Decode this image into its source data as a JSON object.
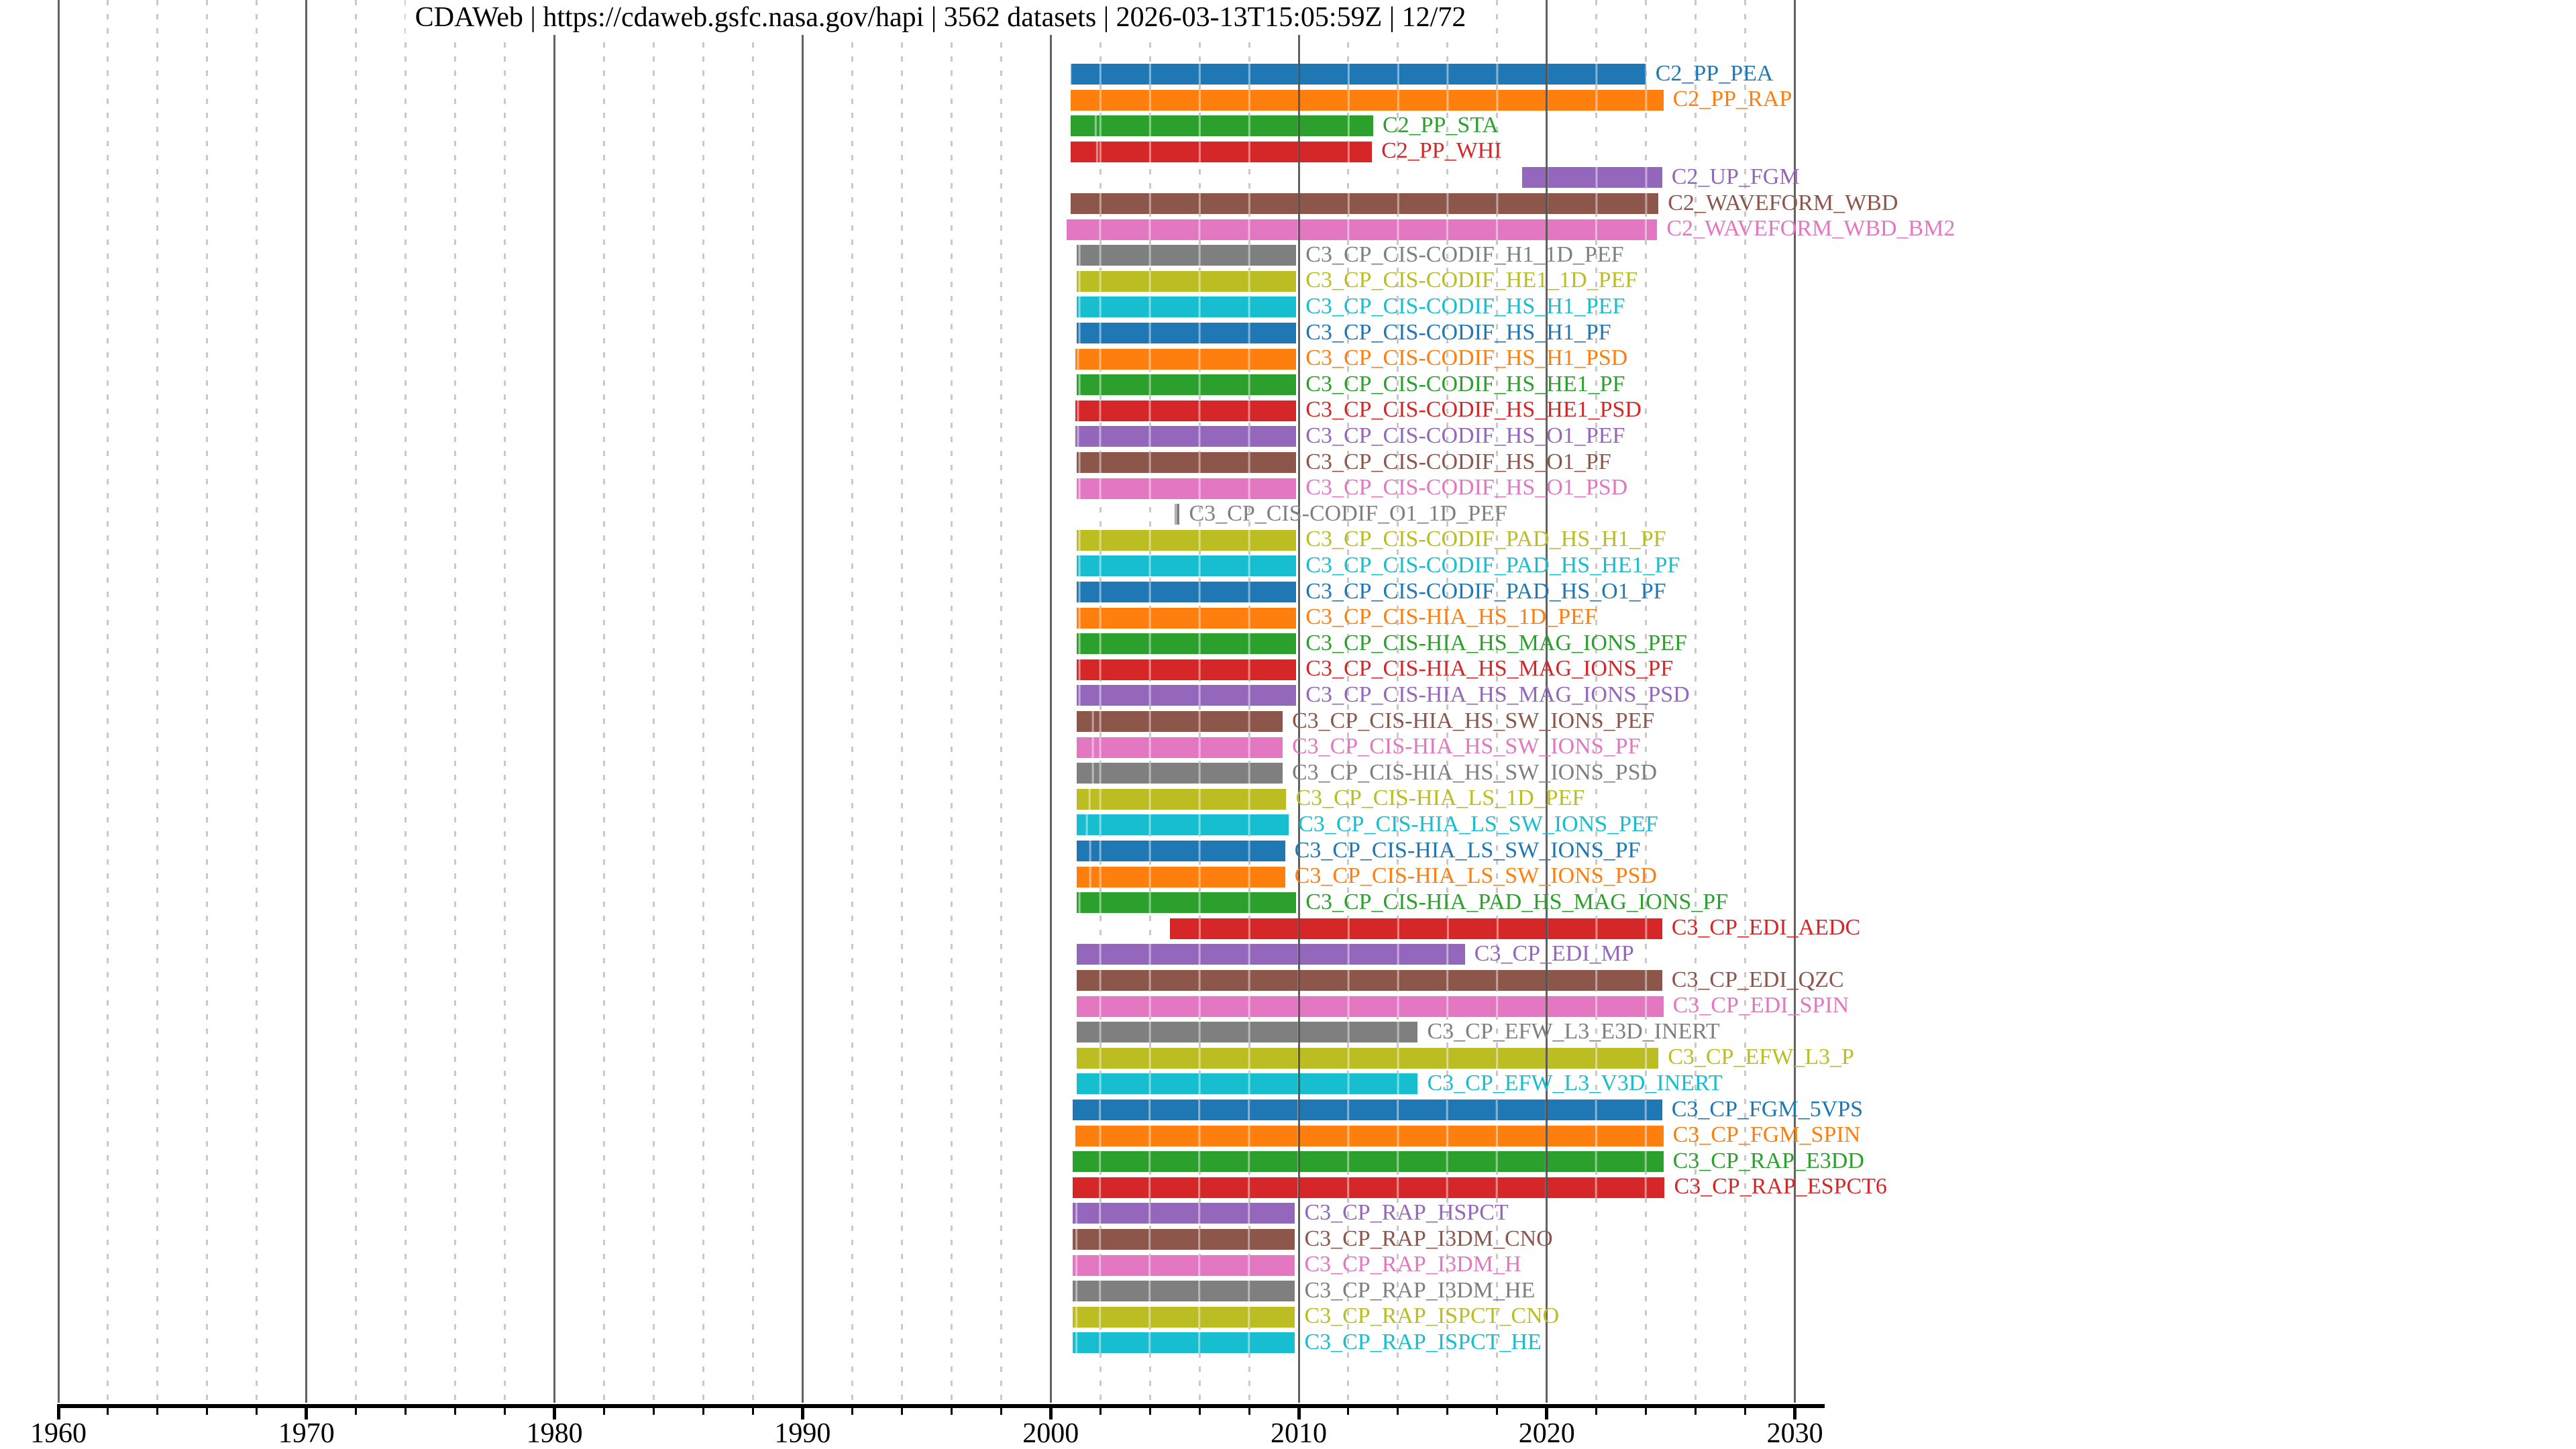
{
  "chart_data": {
    "type": "bar",
    "subtype": "horizontal-gantt-availability-timeline",
    "title": "CDAWeb | https://cdaweb.gsfc.nasa.gov/hapi | 3562 datasets | 2026-03-13T15:05:59Z | 12/72",
    "x_axis": {
      "label": "",
      "tick_years": [
        1960,
        1970,
        1980,
        1990,
        2000,
        2010,
        2020,
        2030
      ],
      "tick_labels": [
        "1960",
        "1970",
        "1980",
        "1990",
        "2000",
        "2010",
        "2020",
        "2030"
      ],
      "minor_tick_step_years": 2,
      "range_years": [
        1960.0,
        2031.2
      ],
      "grid": "major solid gray at decades, minor dotted light-gray every 2 years"
    },
    "legend": "none",
    "palette_tab10": [
      "#1f77b4",
      "#ff7f0e",
      "#2ca02c",
      "#d62728",
      "#9467bd",
      "#8c564b",
      "#e377c2",
      "#7f7f7f",
      "#bcbd22",
      "#17becf"
    ],
    "datasets": [
      {
        "id": "C2_PP_PEA",
        "start": 2000.8,
        "end": 2024.0,
        "color": "#1f77b4"
      },
      {
        "id": "C2_PP_RAP",
        "start": 2000.8,
        "end": 2024.7,
        "color": "#ff7f0e"
      },
      {
        "id": "C2_PP_STA",
        "start": 2000.8,
        "end": 2013.0,
        "color": "#2ca02c"
      },
      {
        "id": "C2_PP_WHI",
        "start": 2000.8,
        "end": 2012.95,
        "color": "#d62728"
      },
      {
        "id": "C2_UP_FGM",
        "start": 2019.0,
        "end": 2024.65,
        "color": "#9467bd"
      },
      {
        "id": "C2_WAVEFORM_WBD",
        "start": 2000.8,
        "end": 2024.5,
        "color": "#8c564b"
      },
      {
        "id": "C2_WAVEFORM_WBD_BM2",
        "start": 2000.65,
        "end": 2024.45,
        "color": "#e377c2"
      },
      {
        "id": "C3_CP_CIS-CODIF_H1_1D_PEF",
        "start": 2001.05,
        "end": 2009.9,
        "color": "#7f7f7f"
      },
      {
        "id": "C3_CP_CIS-CODIF_HE1_1D_PEF",
        "start": 2001.05,
        "end": 2009.9,
        "color": "#bcbd22"
      },
      {
        "id": "C3_CP_CIS-CODIF_HS_H1_PEF",
        "start": 2001.05,
        "end": 2009.9,
        "color": "#17becf"
      },
      {
        "id": "C3_CP_CIS-CODIF_HS_H1_PF",
        "start": 2001.05,
        "end": 2009.9,
        "color": "#1f77b4"
      },
      {
        "id": "C3_CP_CIS-CODIF_HS_H1_PSD",
        "start": 2001.0,
        "end": 2009.9,
        "color": "#ff7f0e"
      },
      {
        "id": "C3_CP_CIS-CODIF_HS_HE1_PF",
        "start": 2001.05,
        "end": 2009.9,
        "color": "#2ca02c"
      },
      {
        "id": "C3_CP_CIS-CODIF_HS_HE1_PSD",
        "start": 2001.0,
        "end": 2009.9,
        "color": "#d62728"
      },
      {
        "id": "C3_CP_CIS-CODIF_HS_O1_PEF",
        "start": 2001.0,
        "end": 2009.9,
        "color": "#9467bd"
      },
      {
        "id": "C3_CP_CIS-CODIF_HS_O1_PF",
        "start": 2001.05,
        "end": 2009.9,
        "color": "#8c564b"
      },
      {
        "id": "C3_CP_CIS-CODIF_HS_O1_PSD",
        "start": 2001.05,
        "end": 2009.9,
        "color": "#e377c2"
      },
      {
        "id": "C3_CP_CIS-CODIF_O1_1D_PEF",
        "start": 2005.0,
        "end": 2005.2,
        "color": "#7f7f7f"
      },
      {
        "id": "C3_CP_CIS-CODIF_PAD_HS_H1_PF",
        "start": 2001.05,
        "end": 2009.9,
        "color": "#bcbd22"
      },
      {
        "id": "C3_CP_CIS-CODIF_PAD_HS_HE1_PF",
        "start": 2001.05,
        "end": 2009.9,
        "color": "#17becf"
      },
      {
        "id": "C3_CP_CIS-CODIF_PAD_HS_O1_PF",
        "start": 2001.05,
        "end": 2009.9,
        "color": "#1f77b4"
      },
      {
        "id": "C3_CP_CIS-HIA_HS_1D_PEF",
        "start": 2001.05,
        "end": 2009.9,
        "color": "#ff7f0e"
      },
      {
        "id": "C3_CP_CIS-HIA_HS_MAG_IONS_PEF",
        "start": 2001.05,
        "end": 2009.9,
        "color": "#2ca02c"
      },
      {
        "id": "C3_CP_CIS-HIA_HS_MAG_IONS_PF",
        "start": 2001.05,
        "end": 2009.9,
        "color": "#d62728"
      },
      {
        "id": "C3_CP_CIS-HIA_HS_MAG_IONS_PSD",
        "start": 2001.05,
        "end": 2009.9,
        "color": "#9467bd"
      },
      {
        "id": "C3_CP_CIS-HIA_HS_SW_IONS_PEF",
        "start": 2001.05,
        "end": 2009.35,
        "color": "#8c564b"
      },
      {
        "id": "C3_CP_CIS-HIA_HS_SW_IONS_PF",
        "start": 2001.05,
        "end": 2009.35,
        "color": "#e377c2"
      },
      {
        "id": "C3_CP_CIS-HIA_HS_SW_IONS_PSD",
        "start": 2001.05,
        "end": 2009.35,
        "color": "#7f7f7f"
      },
      {
        "id": "C3_CP_CIS-HIA_LS_1D_PEF",
        "start": 2001.05,
        "end": 2009.5,
        "color": "#bcbd22"
      },
      {
        "id": "C3_CP_CIS-HIA_LS_SW_IONS_PEF",
        "start": 2001.05,
        "end": 2009.6,
        "color": "#17becf"
      },
      {
        "id": "C3_CP_CIS-HIA_LS_SW_IONS_PF",
        "start": 2001.05,
        "end": 2009.45,
        "color": "#1f77b4"
      },
      {
        "id": "C3_CP_CIS-HIA_LS_SW_IONS_PSD",
        "start": 2001.05,
        "end": 2009.45,
        "color": "#ff7f0e"
      },
      {
        "id": "C3_CP_CIS-HIA_PAD_HS_MAG_IONS_PF",
        "start": 2001.05,
        "end": 2009.9,
        "color": "#2ca02c"
      },
      {
        "id": "C3_CP_EDI_AEDC",
        "start": 2004.8,
        "end": 2024.65,
        "color": "#d62728"
      },
      {
        "id": "C3_CP_EDI_MP",
        "start": 2001.05,
        "end": 2016.7,
        "color": "#9467bd"
      },
      {
        "id": "C3_CP_EDI_QZC",
        "start": 2001.05,
        "end": 2024.65,
        "color": "#8c564b"
      },
      {
        "id": "C3_CP_EDI_SPIN",
        "start": 2001.05,
        "end": 2024.7,
        "color": "#e377c2"
      },
      {
        "id": "C3_CP_EFW_L3_E3D_INERT",
        "start": 2001.05,
        "end": 2014.8,
        "color": "#7f7f7f"
      },
      {
        "id": "C3_CP_EFW_L3_P",
        "start": 2001.05,
        "end": 2024.5,
        "color": "#bcbd22"
      },
      {
        "id": "C3_CP_EFW_L3_V3D_INERT",
        "start": 2001.05,
        "end": 2014.8,
        "color": "#17becf"
      },
      {
        "id": "C3_CP_FGM_5VPS",
        "start": 2000.9,
        "end": 2024.65,
        "color": "#1f77b4"
      },
      {
        "id": "C3_CP_FGM_SPIN",
        "start": 2001.0,
        "end": 2024.7,
        "color": "#ff7f0e"
      },
      {
        "id": "C3_CP_RAP_E3DD",
        "start": 2000.9,
        "end": 2024.7,
        "color": "#2ca02c"
      },
      {
        "id": "C3_CP_RAP_ESPCT6",
        "start": 2000.9,
        "end": 2024.75,
        "color": "#d62728"
      },
      {
        "id": "C3_CP_RAP_HSPCT",
        "start": 2000.9,
        "end": 2009.85,
        "color": "#9467bd"
      },
      {
        "id": "C3_CP_RAP_I3DM_CNO",
        "start": 2000.9,
        "end": 2009.85,
        "color": "#8c564b"
      },
      {
        "id": "C3_CP_RAP_I3DM_H",
        "start": 2000.9,
        "end": 2009.85,
        "color": "#e377c2"
      },
      {
        "id": "C3_CP_RAP_I3DM_HE",
        "start": 2000.9,
        "end": 2009.85,
        "color": "#7f7f7f"
      },
      {
        "id": "C3_CP_RAP_ISPCT_CNO",
        "start": 2000.9,
        "end": 2009.85,
        "color": "#bcbd22"
      },
      {
        "id": "C3_CP_RAP_ISPCT_HE",
        "start": 2000.9,
        "end": 2009.85,
        "color": "#17becf"
      }
    ]
  }
}
